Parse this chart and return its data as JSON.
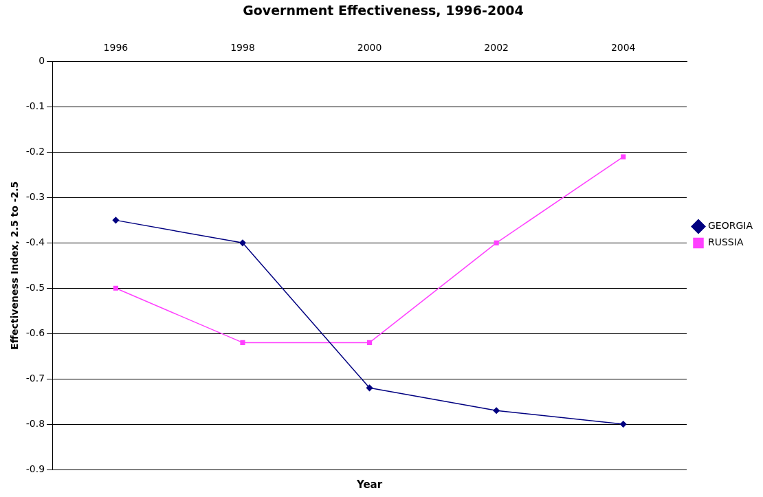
{
  "chart_data": {
    "type": "line",
    "title": "Government Effectiveness, 1996-2004",
    "xlabel": "Year",
    "ylabel": "Effectiveness Index, 2.5 to -2.5",
    "categories": [
      "1996",
      "1998",
      "2000",
      "2002",
      "2004"
    ],
    "series": [
      {
        "name": "GEORGIA",
        "color": "#000080",
        "marker": "diamond",
        "values": [
          -0.35,
          -0.4,
          -0.72,
          -0.77,
          -0.8
        ]
      },
      {
        "name": "RUSSIA",
        "color": "#ff40ff",
        "marker": "square",
        "values": [
          -0.5,
          -0.62,
          -0.62,
          -0.4,
          -0.21
        ]
      }
    ],
    "ylim": [
      -0.9,
      0
    ],
    "yticks": [
      -0.9,
      -0.8,
      -0.7,
      -0.6,
      -0.5,
      -0.4,
      -0.3,
      -0.2,
      -0.1,
      0
    ],
    "grid": "y",
    "legend": "right"
  }
}
